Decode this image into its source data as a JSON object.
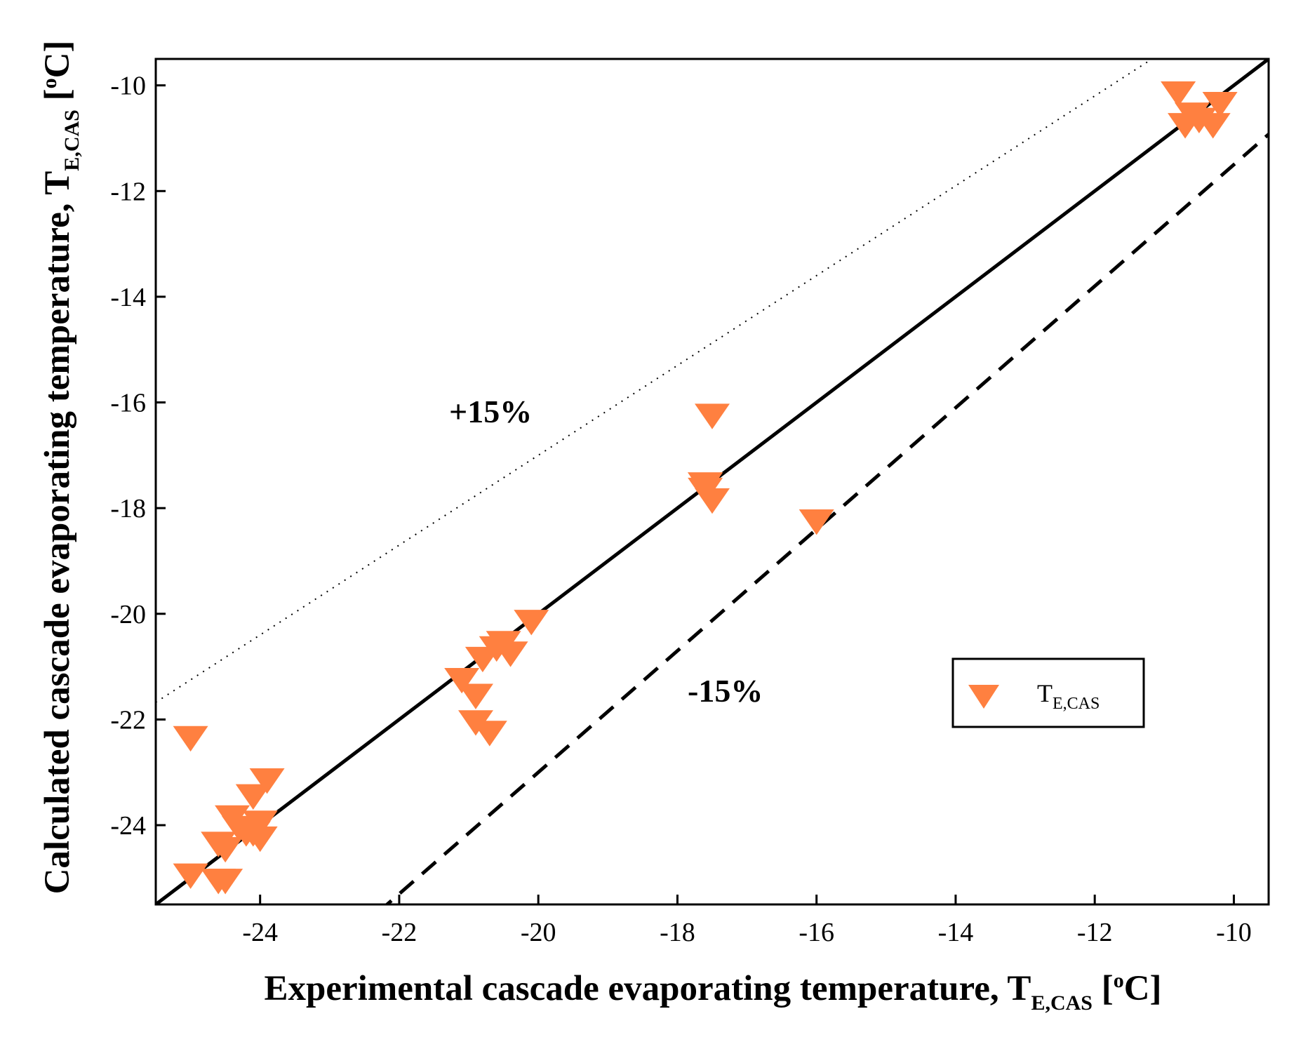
{
  "chart_data": {
    "type": "scatter",
    "xlabel": {
      "main": "Experimental cascade evaporating temperature, T",
      "sub": "E,CAS",
      "open": " [",
      "sup": "o",
      "close": "C]"
    },
    "ylabel": {
      "main": "Calculated cascade evaporating temperature, T",
      "sub": "E,CAS",
      "open": " [",
      "sup": "o",
      "close": "C]"
    },
    "xlim": [
      -25.5,
      -9.5
    ],
    "ylim": [
      -25.5,
      -9.5
    ],
    "xticks": [
      -24,
      -22,
      -20,
      -18,
      -16,
      -14,
      -12,
      -10
    ],
    "yticks": [
      -24,
      -22,
      -20,
      -18,
      -16,
      -14,
      -12,
      -10
    ],
    "grid": false,
    "legend": {
      "position": "right",
      "label_main": "T",
      "label_sub": "E,CAS"
    },
    "series": [
      {
        "name": "TE,CAS",
        "marker": "triangle-down",
        "color": "#ff8040",
        "x": [
          -25.0,
          -25.0,
          -24.6,
          -24.5,
          -24.6,
          -24.5,
          -24.4,
          -24.3,
          -24.2,
          -24.1,
          -24.0,
          -24.0,
          -24.1,
          -23.9,
          -21.1,
          -20.9,
          -20.9,
          -20.8,
          -20.7,
          -20.6,
          -20.5,
          -20.4,
          -20.1,
          -17.6,
          -17.6,
          -17.5,
          -17.5,
          -17.6,
          -16.0,
          -10.8,
          -10.7,
          -10.6,
          -10.5,
          -10.3,
          -10.2
        ],
        "y": [
          -22.3,
          -24.9,
          -25.0,
          -25.0,
          -24.3,
          -24.4,
          -23.8,
          -24.0,
          -24.1,
          -24.1,
          -24.2,
          -23.9,
          -23.4,
          -23.1,
          -21.2,
          -21.5,
          -22.0,
          -20.8,
          -22.2,
          -20.6,
          -20.5,
          -20.7,
          -20.1,
          -17.6,
          -17.5,
          -17.8,
          -16.2,
          -17.5,
          -18.2,
          -10.1,
          -10.7,
          -10.5,
          -10.6,
          -10.7,
          -10.3
        ]
      }
    ],
    "reference_lines": [
      {
        "style": "solid",
        "slope": 1.0
      },
      {
        "style": "dotted",
        "slope": 0.85,
        "label": "+15%"
      },
      {
        "style": "dashed",
        "slope": 1.15,
        "label": "-15%"
      }
    ]
  }
}
